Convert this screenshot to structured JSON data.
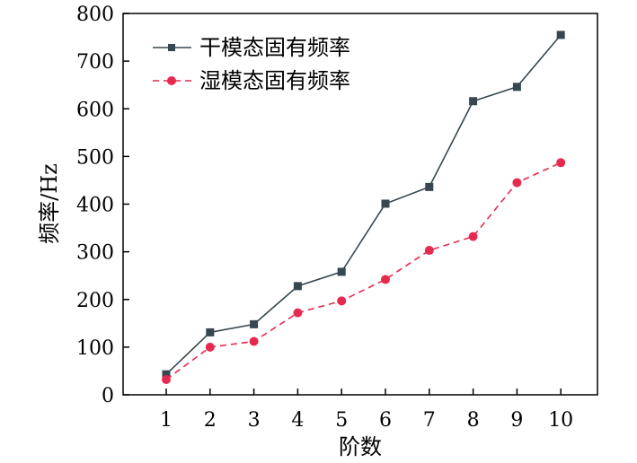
{
  "chart_data": {
    "type": "line",
    "title": "",
    "xlabel": "阶数",
    "ylabel": "频率/Hz",
    "categories": [
      "1",
      "2",
      "3",
      "4",
      "5",
      "6",
      "7",
      "8",
      "9",
      "10"
    ],
    "ylim": [
      0,
      800
    ],
    "yticks": [
      0,
      100,
      200,
      300,
      400,
      500,
      600,
      700,
      800
    ],
    "grid": false,
    "legend_position": "top-left",
    "series": [
      {
        "name": "干模态固有频率",
        "values": [
          43,
          131,
          148,
          228,
          258,
          401,
          436,
          616,
          646,
          755
        ],
        "color": "#37474f",
        "line_style": "solid",
        "marker": "square"
      },
      {
        "name": "湿模态固有频率",
        "values": [
          32,
          100,
          112,
          172,
          197,
          242,
          303,
          332,
          445,
          487
        ],
        "color": "#e8294f",
        "line_style": "dashed",
        "marker": "circle"
      }
    ]
  }
}
